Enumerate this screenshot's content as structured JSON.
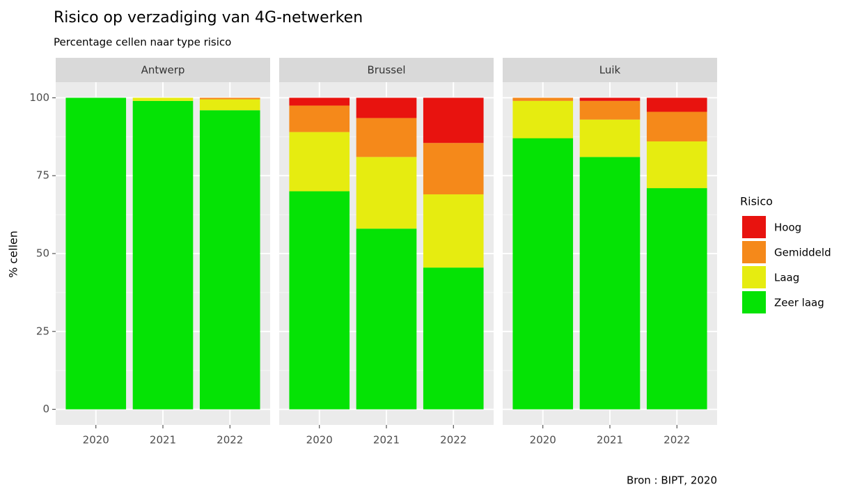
{
  "chart_data": {
    "type": "bar",
    "stacked": true,
    "title": "Risico op verzadiging van 4G-netwerken",
    "subtitle": "Percentage cellen naar type risico",
    "ylabel": "% cellen",
    "legend_title": "Risico",
    "source": "Bron : BIPT, 2020",
    "facets": [
      "Antwerp",
      "Brussel",
      "Luik"
    ],
    "categories": [
      "2020",
      "2021",
      "2022"
    ],
    "ylim": [
      -5,
      105
    ],
    "yticks": [
      0,
      25,
      50,
      75,
      100
    ],
    "grid": true,
    "legend_position": "right",
    "series": [
      {
        "name": "Zeer laag",
        "color": "#05e305",
        "values": [
          [
            100,
            99,
            96
          ],
          [
            70,
            58,
            45.5
          ],
          [
            87,
            81,
            71
          ]
        ]
      },
      {
        "name": "Laag",
        "color": "#e6ec10",
        "values": [
          [
            0,
            1,
            3.5
          ],
          [
            19,
            23,
            23.5
          ],
          [
            12,
            12,
            15
          ]
        ]
      },
      {
        "name": "Gemiddeld",
        "color": "#f5891a",
        "values": [
          [
            0,
            0,
            0.5
          ],
          [
            8.5,
            12.5,
            16.5
          ],
          [
            1,
            6,
            9.5
          ]
        ]
      },
      {
        "name": "Hoog",
        "color": "#e8130f",
        "values": [
          [
            0,
            0,
            0
          ],
          [
            2.5,
            6.5,
            14.5
          ],
          [
            0,
            1,
            4.5
          ]
        ]
      }
    ]
  }
}
